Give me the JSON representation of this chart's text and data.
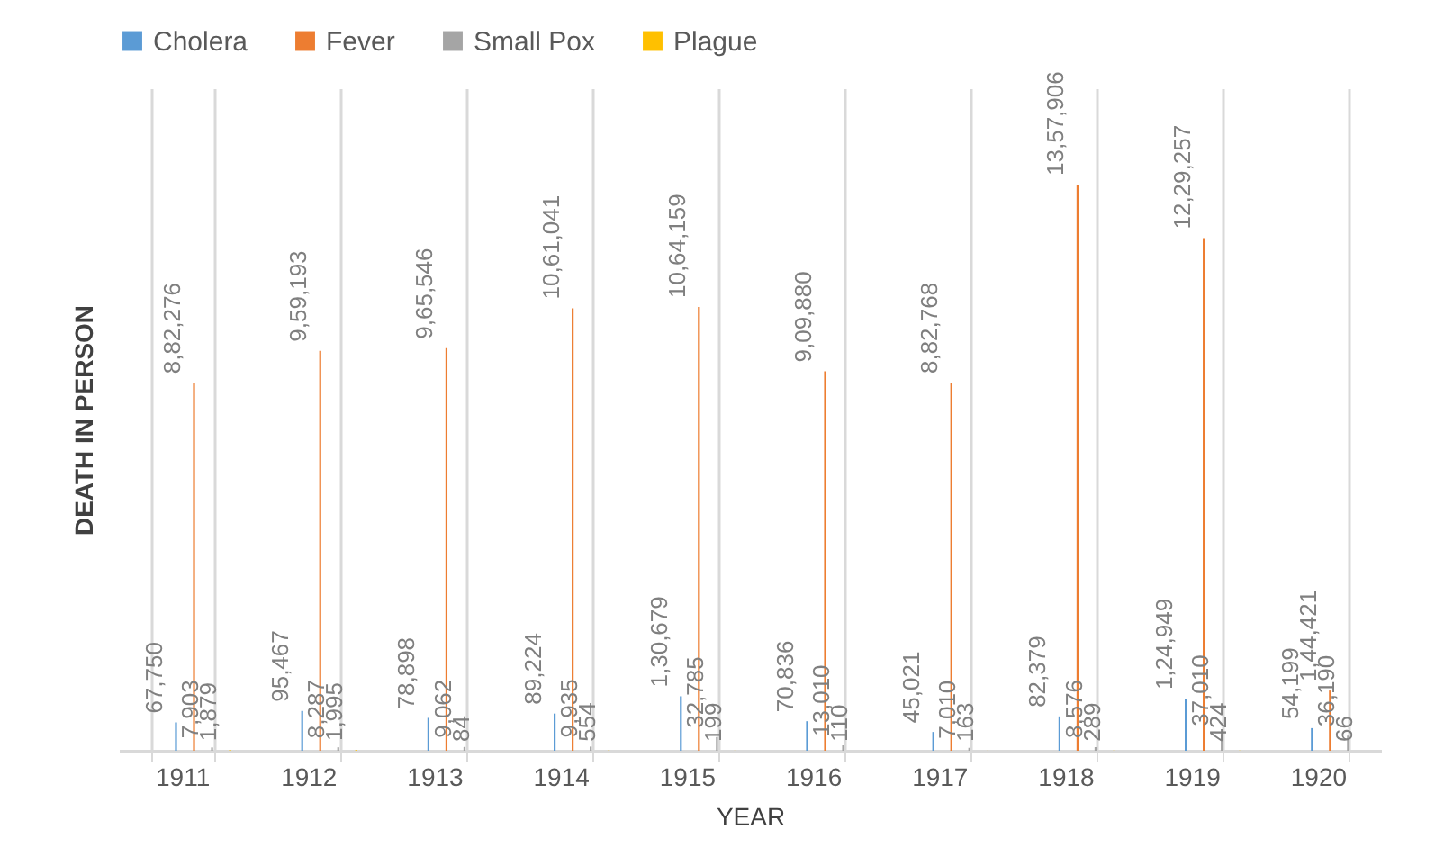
{
  "chart_data": {
    "type": "bar",
    "xlabel": "YEAR",
    "ylabel": "DEATH IN PERSON",
    "categories": [
      "1911",
      "1912",
      "1913",
      "1914",
      "1915",
      "1916",
      "1917",
      "1918",
      "1919",
      "1920"
    ],
    "series": [
      {
        "name": "Cholera",
        "color": "#5b9bd5",
        "values": [
          67750,
          95467,
          78898,
          89224,
          130679,
          70836,
          45021,
          82379,
          124949,
          54199
        ],
        "value_labels": [
          "67,750",
          "95,467",
          "78,898",
          "89,224",
          "1,30,679",
          "70,836",
          "45,021",
          "82,379",
          "1,24,949",
          "54,199"
        ]
      },
      {
        "name": "Fever",
        "color": "#ed7d31",
        "values": [
          882276,
          959193,
          965546,
          1061041,
          1064159,
          909880,
          882768,
          1357906,
          1229257,
          144421
        ],
        "value_labels": [
          "8,82,276",
          "9,59,193",
          "9,65,546",
          "10,61,041",
          "10,64,159",
          "9,09,880",
          "8,82,768",
          "13,57,906",
          "12,29,257",
          "1,44,421"
        ]
      },
      {
        "name": "Small Pox",
        "color": "#a5a5a5",
        "values": [
          7903,
          8287,
          9062,
          9935,
          32785,
          13010,
          7010,
          8576,
          37010,
          36190
        ],
        "value_labels": [
          "7,903",
          "8,287",
          "9,062",
          "9,935",
          "32,785",
          "13,010",
          "7,010",
          "8,576",
          "37,010",
          "36,190"
        ]
      },
      {
        "name": "Plague",
        "color": "#ffc000",
        "values": [
          1879,
          1995,
          84,
          554,
          199,
          110,
          163,
          289,
          424,
          66
        ],
        "value_labels": [
          "1,879",
          "1,995",
          "84",
          "554",
          "199",
          "110",
          "163",
          "289",
          "424",
          "66"
        ]
      }
    ],
    "legend": "top",
    "grid": "x"
  }
}
